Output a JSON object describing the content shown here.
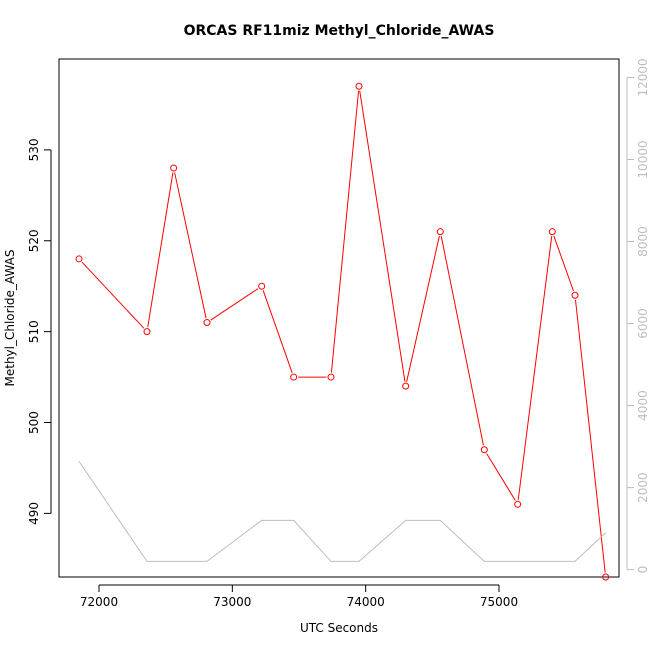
{
  "chart_data": {
    "type": "line",
    "title": "ORCAS RF11miz Methyl_Chloride_AWAS",
    "xlabel": "UTC Seconds",
    "ylabel": "Methyl_Chloride_AWAS",
    "xlim": [
      71700,
      75900
    ],
    "ylim": [
      483,
      540
    ],
    "y2lim": [
      -180,
      12450
    ],
    "x_ticks": [
      72000,
      73000,
      74000,
      75000
    ],
    "y_ticks": [
      490,
      500,
      510,
      520,
      530
    ],
    "y2_ticks": [
      0,
      2000,
      4000,
      6000,
      8000,
      10000,
      12000
    ],
    "grid": false,
    "series": [
      {
        "axis": "left",
        "color": "#ff0000",
        "marker": "open-circle",
        "x": [
          71850,
          72360,
          72560,
          72810,
          73220,
          73460,
          73740,
          73950,
          74300,
          74560,
          74890,
          75140,
          75400,
          75570,
          75800
        ],
        "values": [
          518,
          510,
          528,
          511,
          515,
          505,
          505,
          537,
          504,
          521,
          497,
          491,
          521,
          514,
          483
        ]
      },
      {
        "axis": "right",
        "color": "#bdbdbd",
        "marker": "none",
        "x": [
          71850,
          72360,
          72810,
          73220,
          73460,
          73740,
          73950,
          74300,
          74560,
          74890,
          75140,
          75400,
          75570,
          75800
        ],
        "values": [
          2640,
          200,
          200,
          1200,
          1200,
          200,
          200,
          1200,
          1200,
          200,
          200,
          200,
          200,
          900
        ]
      }
    ]
  }
}
